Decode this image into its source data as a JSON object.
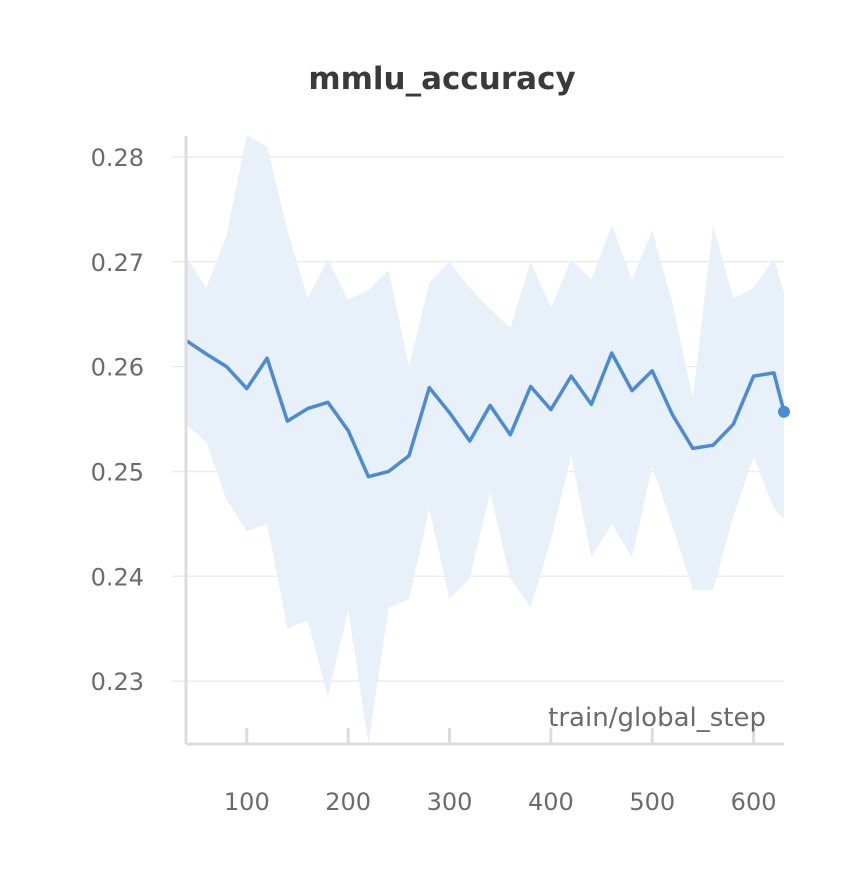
{
  "chart_data": {
    "type": "line",
    "title": "mmlu_accuracy",
    "xlabel": "train/global_step",
    "ylabel": "",
    "xlim": [
      40,
      630
    ],
    "ylim": [
      0.224,
      0.282
    ],
    "grid": true,
    "xticks": [
      100,
      200,
      300,
      400,
      500,
      600
    ],
    "xtick_labels": [
      "100",
      "200",
      "300",
      "400",
      "500",
      "600"
    ],
    "yticks": [
      0.23,
      0.24,
      0.25,
      0.26,
      0.27,
      0.28
    ],
    "ytick_labels": [
      "0.23",
      "0.24",
      "0.25",
      "0.26",
      "0.27",
      "0.28"
    ],
    "colors": {
      "line": "#4a8bd4",
      "band": "#e8f0fa"
    },
    "series": [
      {
        "x": [
          40,
          60,
          80,
          100,
          120,
          140,
          160,
          180,
          200,
          220,
          240,
          260,
          280,
          300,
          320,
          340,
          360,
          380,
          400,
          420,
          440,
          460,
          480,
          500,
          520,
          540,
          560,
          580,
          600,
          620,
          630
        ],
        "values": [
          0.2625,
          0.2612,
          0.26,
          0.2579,
          0.2608,
          0.2548,
          0.256,
          0.2566,
          0.2539,
          0.2495,
          0.25,
          0.2515,
          0.258,
          0.2556,
          0.2529,
          0.2563,
          0.2535,
          0.2581,
          0.2559,
          0.2591,
          0.2564,
          0.2613,
          0.2577,
          0.2596,
          0.2554,
          0.2522,
          0.2525,
          0.2545,
          0.2591,
          0.2594,
          0.2557
        ],
        "band_upper": [
          0.2705,
          0.2675,
          0.2725,
          0.2821,
          0.281,
          0.273,
          0.2665,
          0.2702,
          0.2664,
          0.2673,
          0.2692,
          0.26,
          0.268,
          0.27,
          0.2675,
          0.2655,
          0.2637,
          0.27,
          0.2656,
          0.2702,
          0.2683,
          0.2735,
          0.2683,
          0.273,
          0.266,
          0.257,
          0.2735,
          0.2665,
          0.2675,
          0.2703,
          0.267
        ],
        "band_lower": [
          0.2545,
          0.2528,
          0.2473,
          0.2443,
          0.245,
          0.235,
          0.2358,
          0.2285,
          0.2368,
          0.224,
          0.237,
          0.2378,
          0.2465,
          0.2378,
          0.2398,
          0.248,
          0.2398,
          0.237,
          0.2435,
          0.2515,
          0.2418,
          0.245,
          0.2418,
          0.2505,
          0.2448,
          0.2387,
          0.2387,
          0.2457,
          0.2514,
          0.2465,
          0.2455
        ]
      }
    ]
  }
}
